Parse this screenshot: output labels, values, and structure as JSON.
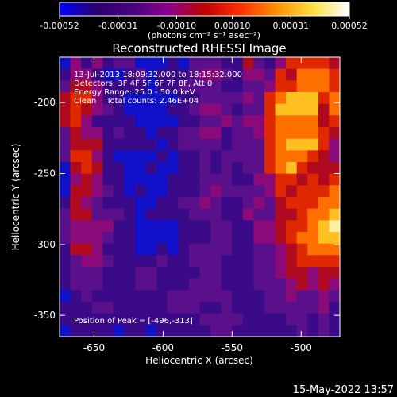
{
  "chart_data": {
    "type": "heatmap",
    "title": "Reconstructed RHESSI Image",
    "xlabel": "Heliocentric X (arcsec)",
    "ylabel": "Heliocentric Y (arcsec)",
    "xlim": [
      -675,
      -472
    ],
    "ylim": [
      -365,
      -168
    ],
    "x_ticks": [
      "-650",
      "-600",
      "-550",
      "-500"
    ],
    "x_tick_values": [
      -650,
      -600,
      -550,
      -500
    ],
    "y_ticks": [
      "-200",
      "-250",
      "-300",
      "-350"
    ],
    "y_tick_values": [
      -200,
      -250,
      -300,
      -350
    ],
    "colorbar": {
      "ticks": [
        "-0.00052",
        "-0.00031",
        "-0.00010",
        "0.00010",
        "0.00031",
        "0.00052"
      ],
      "tick_values": [
        -0.00052,
        -0.00031,
        -0.0001,
        0.0001,
        0.00031,
        0.00052
      ],
      "range": [
        -0.00052,
        0.00052
      ],
      "colormap": [
        "#0000ff",
        "#2a0070",
        "#4b0082",
        "#8b008b",
        "#c00000",
        "#ff3000",
        "#ff9000",
        "#ffe040",
        "#ffffff"
      ]
    },
    "peak": [
      -496,
      -313
    ],
    "intensity_grid_rows_top_to_bottom": [
      "14242331112133322532466665",
      "24421123122234432443657776",
      "35542222122333322334667776",
      "56642211111223333436788867",
      "56543211112234432336888857",
      "56422221111223343446777756",
      "35442322122334423346777765",
      "35552222212333323336788864",
      "36642111121223233336777654",
      "15652211211223232336786555",
      "14542211112223332244665656",
      "15543212112223433334656667",
      "25432221122334322343566677",
      "35533321222233322433556778",
      "34444221111222332244566789",
      "34443221111222332244567788",
      "25542221121233332233456777",
      "23443222232233322233456666",
      "23332223322223322233455455",
      "23332223322233322233345454",
      "12322222223333332223343343",
      "22233222223332232223333342",
      "22222222222223333222233232",
      "12222122122222332222223232"
    ]
  },
  "annotations": {
    "line1": "13-Jul-2013 18:09:32.000 to 18:15:32.000",
    "line2": "Detectors: 3F 4F 5F 6F 7F 8F, Att 0",
    "line3": "Energy Range: 25.0 - 50.0 keV",
    "line4": "Clean    Total counts: 2.46E+04",
    "peak_label": "Position of Peak = [-496,-313]"
  },
  "colorbar_unit_html": "(photons cm⁻² s⁻¹ asec⁻²)",
  "footer_timestamp": "15-May-2022 13:57"
}
